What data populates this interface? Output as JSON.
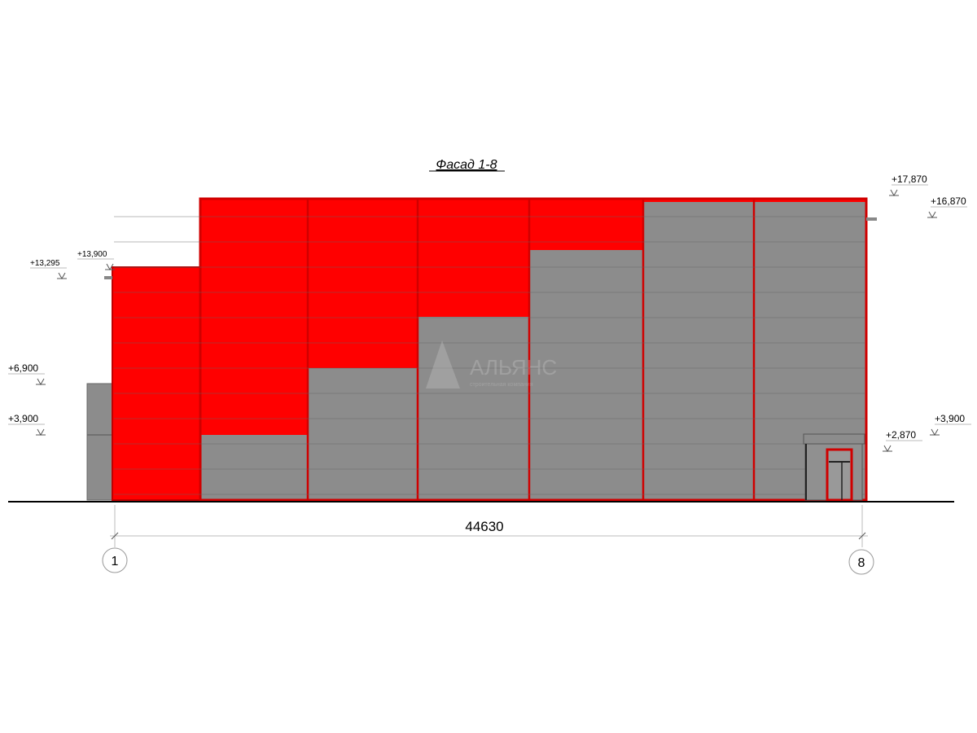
{
  "title": "Фасад 1-8",
  "dimension": "44630",
  "axes": [
    "1",
    "8"
  ],
  "levels": {
    "l17870": "+17,870",
    "l16870": "+16,870",
    "l13900": "+13,900",
    "l13295": "+13,295",
    "l6900": "+6,900",
    "l3900_left": "+3,900",
    "l3900_right": "+3,900",
    "l2870": "+2,870"
  },
  "watermark": {
    "name": "АЛЬЯНС",
    "subtitle": "строительная компания"
  },
  "colors": {
    "accent": "#ff0000",
    "cladding": "#8c8c8c",
    "outline": "#c00000"
  }
}
